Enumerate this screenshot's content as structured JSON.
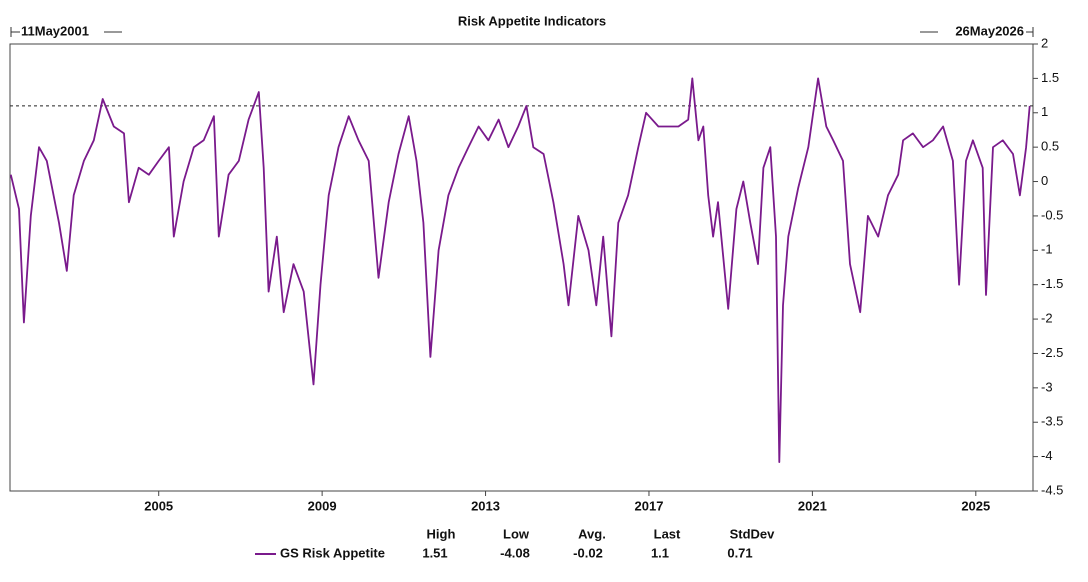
{
  "chart_data": {
    "type": "line",
    "title": "Risk Appetite Indicators",
    "start_label": "11May2001",
    "end_label": "26May2026",
    "xlim": [
      2001.36,
      2026.4
    ],
    "xticks": [
      2005,
      2009,
      2013,
      2017,
      2021,
      2025
    ],
    "ylim": [
      -4.5,
      2
    ],
    "yticks": [
      2,
      1.5,
      1,
      0.5,
      0,
      -0.5,
      -1,
      -1.5,
      -2,
      -2.5,
      -3,
      -3.5,
      -4,
      -4.5
    ],
    "x": [
      2001.38,
      2001.58,
      2001.7,
      2001.87,
      2002.07,
      2002.26,
      2002.56,
      2002.75,
      2002.92,
      2003.17,
      2003.41,
      2003.63,
      2003.9,
      2004.15,
      2004.27,
      2004.51,
      2004.76,
      2005.0,
      2005.25,
      2005.37,
      2005.61,
      2005.86,
      2006.1,
      2006.35,
      2006.47,
      2006.71,
      2006.96,
      2007.2,
      2007.45,
      2007.57,
      2007.69,
      2007.89,
      2008.06,
      2008.3,
      2008.55,
      2008.79,
      2008.96,
      2009.16,
      2009.4,
      2009.65,
      2009.89,
      2010.14,
      2010.38,
      2010.63,
      2010.87,
      2011.12,
      2011.31,
      2011.48,
      2011.65,
      2011.85,
      2012.09,
      2012.34,
      2012.58,
      2012.83,
      2013.07,
      2013.32,
      2013.56,
      2013.8,
      2014.0,
      2014.17,
      2014.42,
      2014.66,
      2014.91,
      2015.03,
      2015.27,
      2015.52,
      2015.71,
      2015.88,
      2016.08,
      2016.25,
      2016.49,
      2016.74,
      2016.93,
      2017.23,
      2017.47,
      2017.72,
      2017.96,
      2018.06,
      2018.21,
      2018.33,
      2018.45,
      2018.57,
      2018.69,
      2018.94,
      2019.14,
      2019.31,
      2019.48,
      2019.67,
      2019.8,
      2019.97,
      2020.11,
      2020.19,
      2020.28,
      2020.41,
      2020.65,
      2020.9,
      2021.02,
      2021.14,
      2021.34,
      2021.51,
      2021.75,
      2021.92,
      2022.17,
      2022.36,
      2022.61,
      2022.85,
      2023.1,
      2023.22,
      2023.46,
      2023.71,
      2023.95,
      2024.2,
      2024.44,
      2024.59,
      2024.76,
      2024.93,
      2025.17,
      2025.25,
      2025.42,
      2025.66,
      2025.91,
      2026.08,
      2026.23,
      2026.32
    ],
    "series": [
      {
        "name": "GS Risk Appetite",
        "color": "#7a1a8c",
        "values": [
          0.1,
          -0.4,
          -2.05,
          -0.5,
          0.5,
          0.3,
          -0.6,
          -1.3,
          -0.2,
          0.3,
          0.6,
          1.2,
          0.8,
          0.7,
          -0.3,
          0.2,
          0.1,
          0.3,
          0.5,
          -0.8,
          0.0,
          0.5,
          0.6,
          0.95,
          -0.8,
          0.1,
          0.3,
          0.9,
          1.3,
          0.2,
          -1.6,
          -0.8,
          -1.9,
          -1.2,
          -1.6,
          -2.95,
          -1.5,
          -0.2,
          0.5,
          0.95,
          0.6,
          0.3,
          -1.4,
          -0.3,
          0.4,
          0.95,
          0.3,
          -0.6,
          -2.55,
          -1.0,
          -0.2,
          0.2,
          0.5,
          0.8,
          0.6,
          0.9,
          0.5,
          0.8,
          1.1,
          0.5,
          0.4,
          -0.3,
          -1.2,
          -1.8,
          -0.5,
          -1.0,
          -1.8,
          -0.8,
          -2.25,
          -0.6,
          -0.2,
          0.5,
          1.0,
          0.8,
          0.8,
          0.8,
          0.9,
          1.5,
          0.6,
          0.8,
          -0.2,
          -0.8,
          -0.3,
          -1.85,
          -0.4,
          0.0,
          -0.6,
          -1.2,
          0.2,
          0.5,
          -0.8,
          -4.08,
          -1.8,
          -0.8,
          -0.1,
          0.5,
          1.0,
          1.5,
          0.8,
          0.6,
          0.3,
          -1.2,
          -1.9,
          -0.5,
          -0.8,
          -0.2,
          0.1,
          0.6,
          0.7,
          0.5,
          0.6,
          0.8,
          0.3,
          -1.5,
          0.3,
          0.6,
          0.2,
          -1.65,
          0.5,
          0.6,
          0.4,
          -0.2,
          0.5,
          1.1
        ]
      }
    ],
    "stats": {
      "headers": [
        "High",
        "Low",
        "Avg.",
        "Last",
        "StdDev"
      ],
      "values": [
        1.51,
        -4.08,
        -0.02,
        1.1,
        0.71
      ]
    }
  }
}
